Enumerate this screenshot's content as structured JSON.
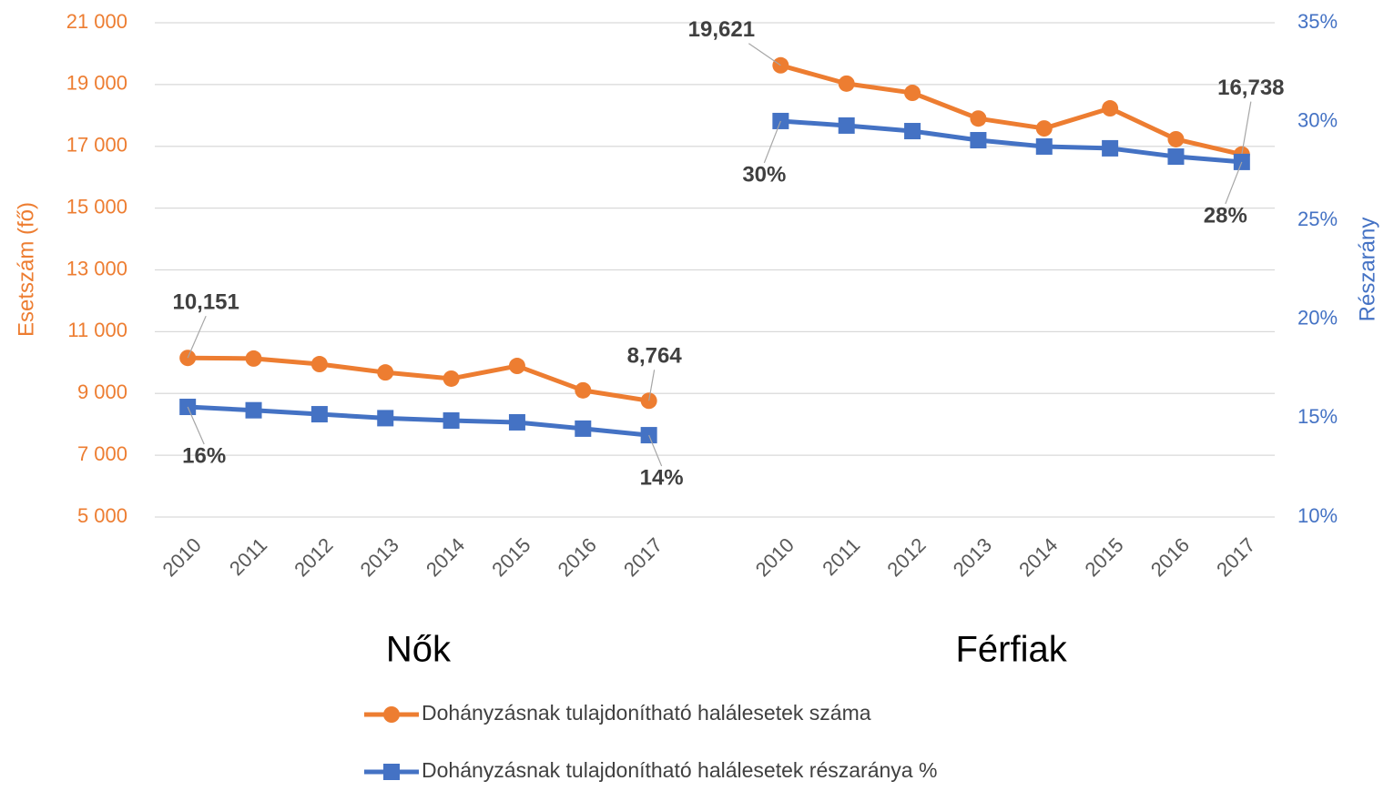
{
  "chart_data": {
    "type": "line",
    "categories": [
      "2010",
      "2011",
      "2012",
      "2013",
      "2014",
      "2015",
      "2016",
      "2017",
      null,
      "2010",
      "2011",
      "2012",
      "2013",
      "2014",
      "2015",
      "2016",
      "2017"
    ],
    "group_labels": [
      "Nők",
      "Férfiak"
    ],
    "ylabel": "Esetszám (fő)",
    "y2label": "Részarány",
    "ylim": [
      5000,
      21000
    ],
    "yticks": [
      {
        "value": 5000,
        "label": "5 000"
      },
      {
        "value": 7000,
        "label": "7 000"
      },
      {
        "value": 9000,
        "label": "9 000"
      },
      {
        "value": 11000,
        "label": "11 000"
      },
      {
        "value": 13000,
        "label": "13 000"
      },
      {
        "value": 15000,
        "label": "15 000"
      },
      {
        "value": 17000,
        "label": "17 000"
      },
      {
        "value": 19000,
        "label": "19 000"
      },
      {
        "value": 21000,
        "label": "21 000"
      }
    ],
    "y2lim": [
      10,
      35
    ],
    "y2ticks": [
      {
        "value": 10,
        "label": "10%"
      },
      {
        "value": 15,
        "label": "15%"
      },
      {
        "value": 20,
        "label": "20%"
      },
      {
        "value": 25,
        "label": "25%"
      },
      {
        "value": 30,
        "label": "30%"
      },
      {
        "value": 35,
        "label": "35%"
      }
    ],
    "grid": true,
    "legend": "bottom",
    "series": [
      {
        "name": "Dohányzásnak tulajdonítható halálesetek száma",
        "color": "#ED7D31",
        "marker": "circle",
        "values": [
          10151,
          10130,
          9950,
          9680,
          9480,
          9890,
          9100,
          8764,
          null,
          19621,
          19030,
          18730,
          17900,
          17580,
          18230,
          17230,
          16738
        ],
        "value_labels": [
          "10,151",
          null,
          null,
          null,
          null,
          null,
          null,
          "8,764",
          null,
          "19,621",
          null,
          null,
          null,
          null,
          null,
          null,
          "16,738"
        ]
      },
      {
        "name": "Dohányzásnak tulajdonítható halálesetek részaránya %",
        "color": "#4472C4",
        "marker": "square",
        "axis": "y2",
        "values": [
          15.57,
          15.4,
          15.2,
          15.0,
          14.88,
          14.79,
          14.47,
          14.14,
          null,
          30.03,
          29.8,
          29.52,
          29.06,
          28.74,
          28.65,
          28.23,
          27.96
        ],
        "value_labels": [
          "16%",
          null,
          null,
          null,
          null,
          null,
          null,
          "14%",
          null,
          "30%",
          null,
          null,
          null,
          null,
          null,
          null,
          "28%"
        ]
      }
    ]
  }
}
